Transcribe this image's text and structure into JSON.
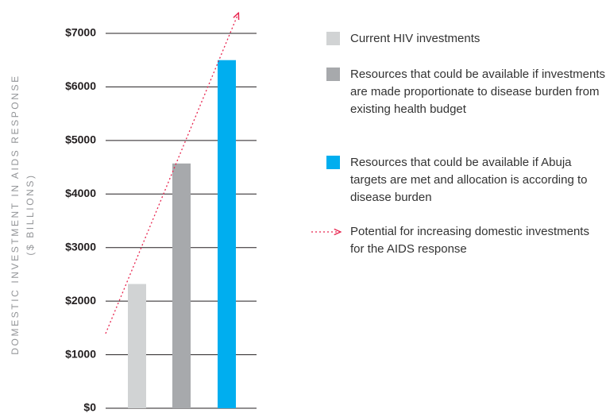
{
  "chart_data": {
    "type": "bar",
    "ylabel": "DOMESTIC INVESTMENT IN AIDS RESPONSE",
    "ylabel_unit": "($ BILLIONS)",
    "series": [
      {
        "name": "Current HIV investments",
        "color": "#d1d3d4",
        "values": [
          2320
        ]
      },
      {
        "name": "Resources that could be available if investments are made proportionate to disease burden from existing health budget",
        "color": "#a7a9ac",
        "values": [
          4570
        ]
      },
      {
        "name": "Resources that could be available if Abuja targets are met and allocation is according to disease burden",
        "color": "#00aeef",
        "values": [
          6500
        ]
      }
    ],
    "trend_label": "Potential for increasing domestic investments for the AIDS response",
    "trend_color": "#e8254f",
    "ylim": [
      0,
      7000
    ],
    "yticks": [
      {
        "value": 0,
        "label": "$0"
      },
      {
        "value": 1000,
        "label": "$1000"
      },
      {
        "value": 2000,
        "label": "$2000"
      },
      {
        "value": 3000,
        "label": "$3000"
      },
      {
        "value": 4000,
        "label": "$4000"
      },
      {
        "value": 5000,
        "label": "$5000"
      },
      {
        "value": 6000,
        "label": "$6000"
      },
      {
        "value": 7000,
        "label": "$7000"
      }
    ],
    "grid": true
  }
}
